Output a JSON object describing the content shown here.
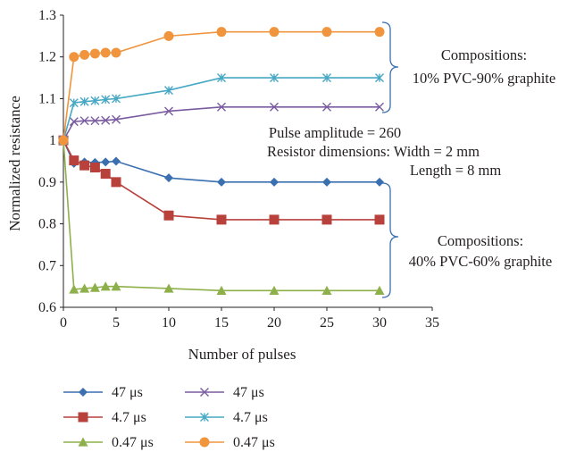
{
  "chart_data": {
    "type": "line",
    "title": "",
    "xlabel": "Number of pulses",
    "ylabel": "Normalized resistance",
    "xlim": [
      0,
      35
    ],
    "ylim": [
      0.6,
      1.3
    ],
    "x_ticks": [
      "0",
      "5",
      "10",
      "15",
      "20",
      "25",
      "30",
      "35"
    ],
    "y_ticks": [
      "0.6",
      "0.7",
      "0.8",
      "0.9",
      "1",
      "1.1",
      "1.2",
      "1.3"
    ],
    "grid": false,
    "series": [
      {
        "name": "47 μs",
        "group": "40% PVC-60% graphite",
        "color": "#3a6fb0",
        "marker": "diamond",
        "x": [
          0,
          1,
          2,
          3,
          4,
          5,
          10,
          15,
          20,
          25,
          30
        ],
        "y": [
          1.0,
          0.945,
          0.948,
          0.947,
          0.948,
          0.95,
          0.91,
          0.9,
          0.9,
          0.9,
          0.9
        ]
      },
      {
        "name": "4.7 μs",
        "group": "40% PVC-60% graphite",
        "color": "#b8413c",
        "marker": "square",
        "x": [
          0,
          1,
          2,
          3,
          4,
          5,
          10,
          15,
          20,
          25,
          30
        ],
        "y": [
          1.0,
          0.952,
          0.94,
          0.935,
          0.92,
          0.9,
          0.82,
          0.81,
          0.81,
          0.81,
          0.81
        ]
      },
      {
        "name": "0.47 μs",
        "group": "40% PVC-60% graphite",
        "color": "#8db04a",
        "marker": "triangle",
        "x": [
          0,
          1,
          2,
          3,
          4,
          5,
          10,
          15,
          20,
          25,
          30
        ],
        "y": [
          1.0,
          0.643,
          0.645,
          0.647,
          0.65,
          0.65,
          0.645,
          0.64,
          0.64,
          0.64,
          0.64
        ]
      },
      {
        "name": "47 μs",
        "group": "10% PVC-90% graphite",
        "color": "#7a5ba0",
        "marker": "x",
        "x": [
          0,
          1,
          2,
          3,
          4,
          5,
          10,
          15,
          20,
          25,
          30
        ],
        "y": [
          1.0,
          1.045,
          1.047,
          1.047,
          1.048,
          1.05,
          1.07,
          1.08,
          1.08,
          1.08,
          1.08
        ]
      },
      {
        "name": "4.7 μs",
        "group": "10% PVC-90% graphite",
        "color": "#47a8c4",
        "marker": "star",
        "x": [
          0,
          1,
          2,
          3,
          4,
          5,
          10,
          15,
          20,
          25,
          30
        ],
        "y": [
          1.0,
          1.09,
          1.093,
          1.095,
          1.098,
          1.1,
          1.12,
          1.15,
          1.15,
          1.15,
          1.15
        ]
      },
      {
        "name": "0.47 μs",
        "group": "10% PVC-90% graphite",
        "color": "#f0953e",
        "marker": "circle",
        "x": [
          0,
          1,
          2,
          3,
          4,
          5,
          10,
          15,
          20,
          25,
          30
        ],
        "y": [
          1.0,
          1.2,
          1.205,
          1.208,
          1.21,
          1.21,
          1.25,
          1.26,
          1.26,
          1.26,
          1.26
        ]
      }
    ],
    "annotations": {
      "group_top_line1": "Compositions:",
      "group_top_line2": "10% PVC-90% graphite",
      "params_line1": "Pulse amplitude = 260",
      "params_line2": "Resistor dimensions: Width = 2 mm",
      "params_line3": "Length = 8 mm",
      "group_bottom_line1": "Compositions:",
      "group_bottom_line2": "40% PVC-60% graphite"
    },
    "bracket_color": "#3a6fb0",
    "legend_position": "bottom-left"
  }
}
